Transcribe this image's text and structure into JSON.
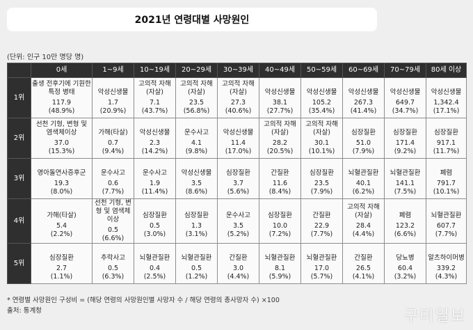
{
  "title": "2021년 연령대별 사망원인",
  "unit_note": "(단위: 인구 10만 명당 명)",
  "headers": [
    "",
    "0세",
    "1~9세",
    "10~19세",
    "20~29세",
    "30~39세",
    "40~49세",
    "50~59세",
    "60~69세",
    "70~79세",
    "80세 이상"
  ],
  "rows": [
    {
      "rank": "1위",
      "cells": [
        {
          "cause": "출생 전후기에 기원한 특정 병태",
          "value": "117.9",
          "pct": "(48.9%)"
        },
        {
          "cause": "악성신생물",
          "value": "1.7",
          "pct": "(20.9%)"
        },
        {
          "cause": "고의적 자해(자살)",
          "value": "7.1",
          "pct": "(43.7%)"
        },
        {
          "cause": "고의적 자해(자살)",
          "value": "23.5",
          "pct": "(56.8%)"
        },
        {
          "cause": "고의적 자해(자살)",
          "value": "27.3",
          "pct": "(40.6%)"
        },
        {
          "cause": "악성신생물",
          "value": "38.1",
          "pct": "(27.7%)"
        },
        {
          "cause": "악성신생물",
          "value": "105.2",
          "pct": "(35.4%)"
        },
        {
          "cause": "악성신생물",
          "value": "267.3",
          "pct": "(41.4%)"
        },
        {
          "cause": "악성신생물",
          "value": "649.7",
          "pct": "(34.7%)"
        },
        {
          "cause": "악성신생물",
          "value": "1,342.4",
          "pct": "(17.1%)"
        }
      ]
    },
    {
      "rank": "2위",
      "cells": [
        {
          "cause": "선천 기형, 변형 및 염색체이상",
          "value": "37.0",
          "pct": "(15.3%)"
        },
        {
          "cause": "가해(타살)",
          "value": "0.7",
          "pct": "(9.4%)"
        },
        {
          "cause": "악성신생물",
          "value": "2.3",
          "pct": "(14.2%)"
        },
        {
          "cause": "운수사고",
          "value": "4.1",
          "pct": "(9.8%)"
        },
        {
          "cause": "악성신생물",
          "value": "11.4",
          "pct": "(17.0%)"
        },
        {
          "cause": "고의적 자해(자살)",
          "value": "28.2",
          "pct": "(20.5%)"
        },
        {
          "cause": "고의적 자해(자살)",
          "value": "30.1",
          "pct": "(10.1%)"
        },
        {
          "cause": "심장질환",
          "value": "51.0",
          "pct": "(7.9%)"
        },
        {
          "cause": "심장질환",
          "value": "171.4",
          "pct": "(9.2%)"
        },
        {
          "cause": "심장질환",
          "value": "917.1",
          "pct": "(11.7%)"
        }
      ]
    },
    {
      "rank": "3위",
      "cells": [
        {
          "cause": "영아돌연사증후군",
          "value": "19.3",
          "pct": "(8.0%)"
        },
        {
          "cause": "운수사고",
          "value": "0.6",
          "pct": "(7.7%)"
        },
        {
          "cause": "운수사고",
          "value": "1.9",
          "pct": "(11.4%)"
        },
        {
          "cause": "악성신생물",
          "value": "3.5",
          "pct": "(8.6%)"
        },
        {
          "cause": "심장질환",
          "value": "3.7",
          "pct": "(5.6%)"
        },
        {
          "cause": "간질환",
          "value": "11.6",
          "pct": "(8.4%)"
        },
        {
          "cause": "심장질환",
          "value": "23.5",
          "pct": "(7.9%)"
        },
        {
          "cause": "뇌혈관질환",
          "value": "40.1",
          "pct": "(6.2%)"
        },
        {
          "cause": "뇌혈관질환",
          "value": "141.1",
          "pct": "(7.5%)"
        },
        {
          "cause": "폐렴",
          "value": "791.7",
          "pct": "(10.1%)"
        }
      ]
    },
    {
      "rank": "4위",
      "cells": [
        {
          "cause": "가해(타살)",
          "value": "5.4",
          "pct": "(2.2%)"
        },
        {
          "cause": "선천 기형, 변형 및 염색체이상",
          "value": "0.5",
          "pct": "(6.6%)"
        },
        {
          "cause": "심장질환",
          "value": "0.5",
          "pct": "(3.0%)"
        },
        {
          "cause": "심장질환",
          "value": "1.3",
          "pct": "(3.1%)"
        },
        {
          "cause": "운수사고",
          "value": "3.5",
          "pct": "(5.2%)"
        },
        {
          "cause": "심장질환",
          "value": "10.0",
          "pct": "(7.2%)"
        },
        {
          "cause": "간질환",
          "value": "22.9",
          "pct": "(7.7%)"
        },
        {
          "cause": "고의적 자해(자살)",
          "value": "28.4",
          "pct": "(4.4%)"
        },
        {
          "cause": "폐렴",
          "value": "123.2",
          "pct": "(6.6%)"
        },
        {
          "cause": "뇌혈관질환",
          "value": "607.7",
          "pct": "(7.7%)"
        }
      ]
    },
    {
      "rank": "5위",
      "cells": [
        {
          "cause": "심장질환",
          "value": "2.7",
          "pct": "(1.1%)"
        },
        {
          "cause": "추락사고",
          "value": "0.5",
          "pct": "(6.3%)"
        },
        {
          "cause": "뇌혈관질환",
          "value": "0.4",
          "pct": "(2.5%)"
        },
        {
          "cause": "뇌혈관질환",
          "value": "0.5",
          "pct": "(1.2%)"
        },
        {
          "cause": "간질환",
          "value": "3.0",
          "pct": "(4.4%)"
        },
        {
          "cause": "뇌혈관질환",
          "value": "8.1",
          "pct": "(5.9%)"
        },
        {
          "cause": "뇌혈관질환",
          "value": "17.0",
          "pct": "(5.7%)"
        },
        {
          "cause": "간질환",
          "value": "26.5",
          "pct": "(4.1%)"
        },
        {
          "cause": "당뇨병",
          "value": "60.4",
          "pct": "(3.2%)"
        },
        {
          "cause": "알츠하이머병",
          "value": "339.2",
          "pct": "(4.3%)"
        }
      ]
    }
  ],
  "footnote": "* 연령별 사망원인 구성비 = (해당 연령의 사망원인별 사망자 수 / 해당 연령의 총사망자 수) ×100",
  "source": "출처: 통계청",
  "watermark": "구미일보"
}
